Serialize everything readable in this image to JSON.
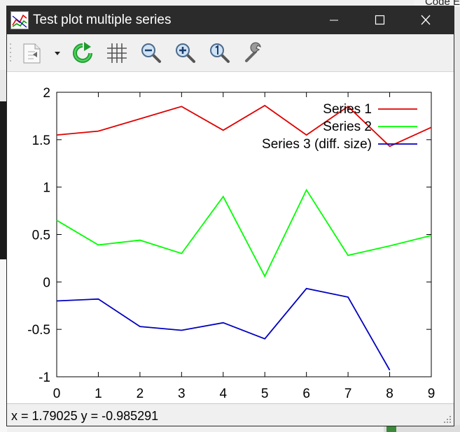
{
  "background": {
    "top_right_text": "Code E"
  },
  "window": {
    "title": "Test plot multiple series",
    "controls": {
      "minimize": "minimize-icon",
      "maximize": "maximize-icon",
      "close": "close-icon"
    }
  },
  "toolbar": {
    "icons": [
      "copy-menu-icon",
      "replot-icon",
      "grid-icon",
      "zoom-out-icon",
      "zoom-in-icon",
      "zoom-reset-icon",
      "settings-icon"
    ]
  },
  "status": {
    "text": "x = 1.79025 y = -0.985291"
  },
  "colors": {
    "series1": "#e00000",
    "series2": "#00ff00",
    "series3": "#0000c0"
  },
  "chart_data": {
    "type": "line",
    "x": [
      0,
      1,
      2,
      3,
      4,
      5,
      6,
      7,
      8,
      9
    ],
    "xlim": [
      0,
      9
    ],
    "ylim": [
      -1,
      2
    ],
    "xticks": [
      "0",
      "1",
      "2",
      "3",
      "4",
      "5",
      "6",
      "7",
      "8",
      "9"
    ],
    "yticks": [
      "2",
      "1.5",
      "1",
      "0.5",
      "0",
      "-0.5",
      "-1"
    ],
    "ytick_values": [
      2,
      1.5,
      1,
      0.5,
      0,
      -0.5,
      -1
    ],
    "grid": false,
    "legend": "top-right",
    "series": [
      {
        "name": "Series 1",
        "x": [
          0,
          1,
          2,
          3,
          4,
          5,
          6,
          7,
          8,
          9
        ],
        "values": [
          1.55,
          1.59,
          1.72,
          1.85,
          1.6,
          1.86,
          1.55,
          1.85,
          1.43,
          1.63
        ]
      },
      {
        "name": "Series 2",
        "x": [
          0,
          1,
          2,
          3,
          4,
          5,
          6,
          7,
          8,
          9
        ],
        "values": [
          0.65,
          0.39,
          0.44,
          0.3,
          0.9,
          0.06,
          0.97,
          0.28,
          0.38,
          0.49
        ]
      },
      {
        "name": "Series 3 (diff. size)",
        "x": [
          0,
          1,
          2,
          3,
          4,
          5,
          6,
          7,
          8
        ],
        "values": [
          -0.2,
          -0.18,
          -0.47,
          -0.51,
          -0.43,
          -0.6,
          -0.07,
          -0.16,
          -0.93
        ]
      }
    ]
  }
}
